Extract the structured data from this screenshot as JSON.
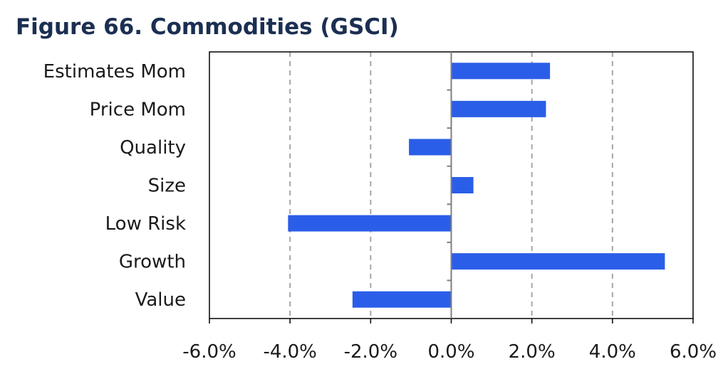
{
  "title": "Figure 66. Commodities (GSCI)",
  "chart_data": {
    "type": "bar",
    "orientation": "horizontal",
    "title": "Figure 66. Commodities (GSCI)",
    "xlabel": "",
    "ylabel": "",
    "categories": [
      "Estimates Mom",
      "Price Mom",
      "Quality",
      "Size",
      "Low Risk",
      "Growth",
      "Value"
    ],
    "values": [
      2.45,
      2.35,
      -1.05,
      0.55,
      -4.05,
      5.3,
      -2.45
    ],
    "xlim": [
      -6,
      6
    ],
    "xticks": [
      -6,
      -4,
      -2,
      0,
      2,
      4,
      6
    ],
    "tick_labels": [
      "-6.0%",
      "-4.0%",
      "-2.0%",
      "0.0%",
      "2.0%",
      "4.0%",
      "6.0%"
    ],
    "grid": "vertical dashed",
    "legend": "none",
    "colors": {
      "bar": "#2b5ee8",
      "grid": "#a6a6a6",
      "axis": "#000000",
      "title": "#1b2f52"
    }
  }
}
